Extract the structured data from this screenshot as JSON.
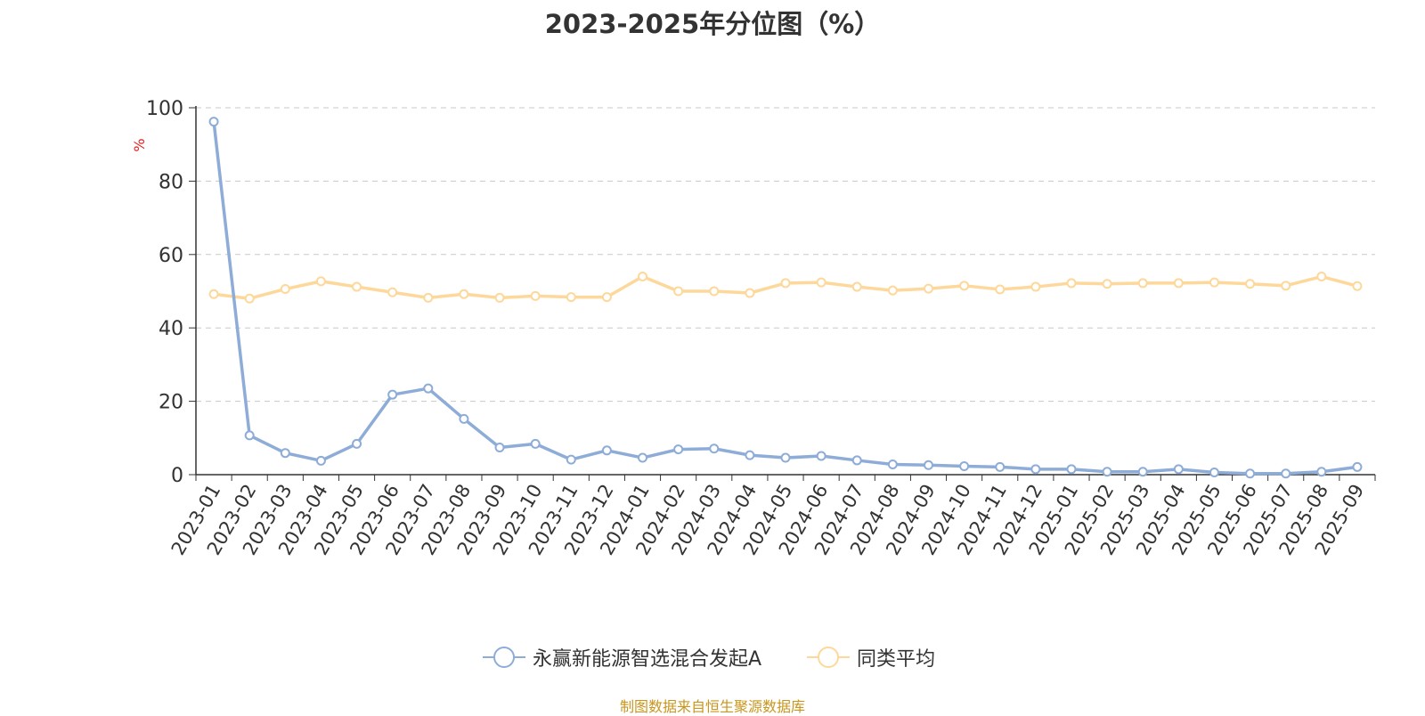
{
  "title": "2023-2025年分位图（%）",
  "source_note": "制图数据来自恒生聚源数据库",
  "colors": {
    "series_fund": "#8eacd8",
    "series_avg": "#fdd89a",
    "ylabel": "#e02020",
    "source_note": "#c8961e",
    "axis": "#333333",
    "grid": "#c8c8c8"
  },
  "chart_data": {
    "type": "line",
    "title": "2023-2025年分位图（%）",
    "xlabel": "",
    "ylabel": "%",
    "ylim": [
      0,
      100
    ],
    "yticks": [
      0,
      20,
      40,
      60,
      80,
      100
    ],
    "grid": "horizontal dashed",
    "legend_position": "bottom",
    "categories": [
      "2023-01",
      "2023-02",
      "2023-03",
      "2023-04",
      "2023-05",
      "2023-06",
      "2023-07",
      "2023-08",
      "2023-09",
      "2023-10",
      "2023-11",
      "2023-12",
      "2024-01",
      "2024-02",
      "2024-03",
      "2024-04",
      "2024-05",
      "2024-06",
      "2024-07",
      "2024-08",
      "2024-09",
      "2024-10",
      "2024-11",
      "2024-12",
      "2025-01",
      "2025-02",
      "2025-03",
      "2025-04",
      "2025-05",
      "2025-06",
      "2025-07",
      "2025-08",
      "2025-09"
    ],
    "series": [
      {
        "name": "永赢新能源智选混合发起A",
        "color": "#8eacd8",
        "values": [
          96.2,
          10.7,
          5.9,
          3.8,
          8.4,
          21.8,
          23.5,
          15.2,
          7.4,
          8.4,
          4.1,
          6.6,
          4.6,
          6.9,
          7.1,
          5.3,
          4.6,
          5.1,
          3.9,
          2.8,
          2.6,
          2.3,
          2.1,
          1.5,
          1.5,
          0.8,
          0.8,
          1.5,
          0.6,
          0.3,
          0.3,
          0.8,
          2.1
        ]
      },
      {
        "name": "同类平均",
        "color": "#fdd89a",
        "values": [
          49.2,
          48.0,
          50.6,
          52.7,
          51.2,
          49.7,
          48.2,
          49.2,
          48.2,
          48.7,
          48.4,
          48.4,
          54.0,
          50.0,
          50.0,
          49.5,
          52.2,
          52.4,
          51.2,
          50.2,
          50.7,
          51.5,
          50.5,
          51.2,
          52.2,
          52.0,
          52.2,
          52.2,
          52.4,
          52.0,
          51.5,
          54.0,
          51.4
        ]
      }
    ]
  }
}
